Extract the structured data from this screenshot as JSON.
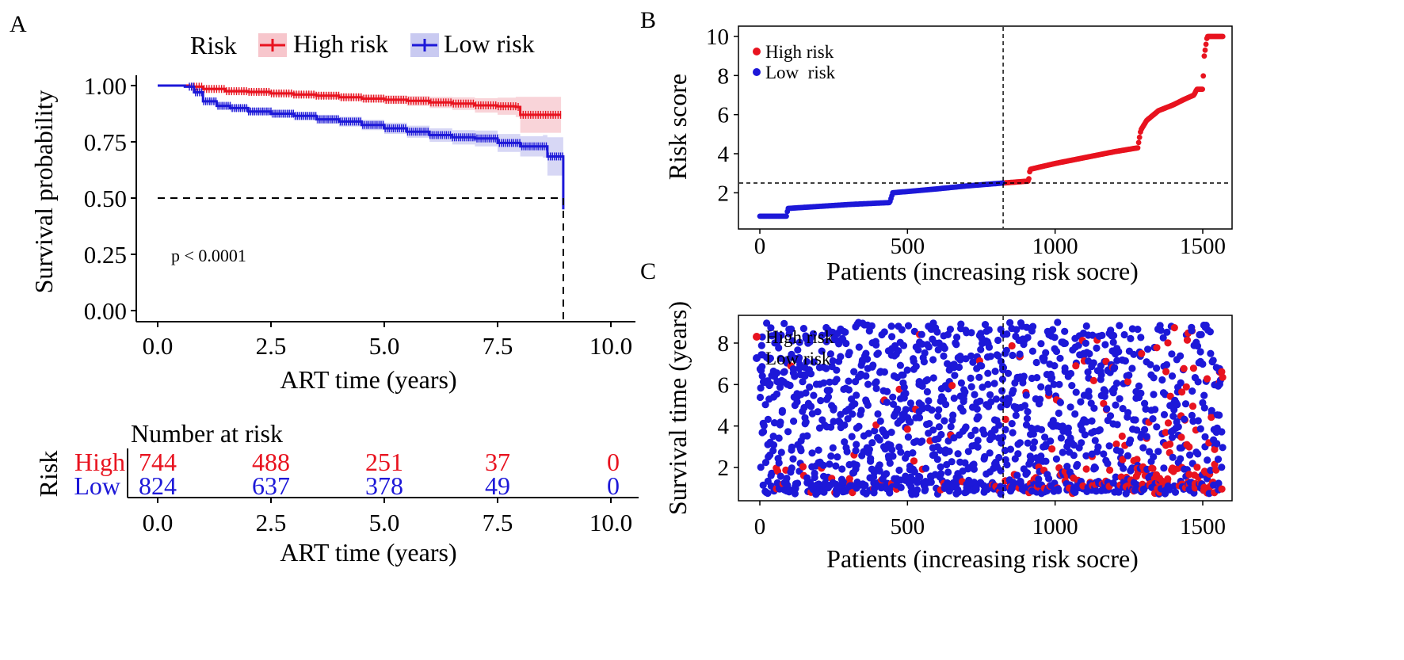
{
  "colors": {
    "high": "#e8131f",
    "low": "#1d18d8",
    "axis": "#000000",
    "high_band": "#f7c6cc",
    "low_band": "#c9caf1"
  },
  "panel_letters": {
    "a": "A",
    "b": "B",
    "c": "C"
  },
  "chart_data": [
    {
      "type": "line",
      "panel": "A",
      "title": "",
      "xlabel": "ART time (years)",
      "ylabel": "Survival probability",
      "xlim": [
        0,
        10.5
      ],
      "ylim": [
        0,
        1
      ],
      "xticks": [
        "0.0",
        "2.5",
        "5.0",
        "7.5",
        "10.0"
      ],
      "yticks": [
        "0.00",
        "0.25",
        "0.50",
        "0.75",
        "1.00"
      ],
      "legend_title": "Risk",
      "legend_position": "top",
      "pvalue_text": "p < 0.0001",
      "median_line": {
        "y": 0.5,
        "x_end": 8.95
      },
      "series": [
        {
          "name": "High risk",
          "x": [
            0,
            0.7,
            1.0,
            1.5,
            2.0,
            2.5,
            3.0,
            3.5,
            4.0,
            4.5,
            5.0,
            5.5,
            6.0,
            6.5,
            7.0,
            7.5,
            7.9,
            8.0,
            8.9
          ],
          "y": [
            1.0,
            0.995,
            0.985,
            0.975,
            0.972,
            0.965,
            0.96,
            0.955,
            0.948,
            0.942,
            0.937,
            0.932,
            0.925,
            0.92,
            0.912,
            0.908,
            0.905,
            0.87,
            0.87
          ],
          "ci_low": [
            1.0,
            0.99,
            0.978,
            0.965,
            0.96,
            0.953,
            0.946,
            0.94,
            0.932,
            0.925,
            0.918,
            0.91,
            0.9,
            0.892,
            0.88,
            0.87,
            0.86,
            0.79,
            0.79
          ],
          "ci_high": [
            1.0,
            1.0,
            0.992,
            0.985,
            0.984,
            0.977,
            0.974,
            0.97,
            0.964,
            0.959,
            0.956,
            0.954,
            0.95,
            0.948,
            0.944,
            0.946,
            0.95,
            0.95,
            0.95
          ]
        },
        {
          "name": "Low risk",
          "x": [
            0,
            0.6,
            0.8,
            1.0,
            1.3,
            1.6,
            2.0,
            2.5,
            3.0,
            3.5,
            4.0,
            4.5,
            5.0,
            5.5,
            6.0,
            6.5,
            7.0,
            7.5,
            8.0,
            8.5,
            8.6,
            8.9,
            8.95
          ],
          "y": [
            1.0,
            0.995,
            0.97,
            0.93,
            0.91,
            0.9,
            0.885,
            0.875,
            0.865,
            0.85,
            0.84,
            0.825,
            0.81,
            0.795,
            0.78,
            0.77,
            0.765,
            0.745,
            0.73,
            0.73,
            0.685,
            0.685,
            0.45
          ],
          "ci_low": [
            1.0,
            0.99,
            0.962,
            0.918,
            0.896,
            0.885,
            0.87,
            0.858,
            0.847,
            0.83,
            0.818,
            0.802,
            0.785,
            0.768,
            0.75,
            0.738,
            0.73,
            0.705,
            0.685,
            0.68,
            0.6,
            0.6,
            0.45
          ],
          "ci_high": [
            1.0,
            1.0,
            0.978,
            0.942,
            0.924,
            0.915,
            0.9,
            0.892,
            0.883,
            0.87,
            0.862,
            0.848,
            0.835,
            0.822,
            0.81,
            0.802,
            0.8,
            0.785,
            0.775,
            0.78,
            0.77,
            0.77,
            0.45
          ]
        }
      ]
    },
    {
      "type": "table",
      "panel": "A-risk-table",
      "title": "Number at risk",
      "row_label_title": "Risk",
      "xlabel": "ART time (years)",
      "xticks": [
        "0.0",
        "2.5",
        "5.0",
        "7.5",
        "10.0"
      ],
      "times": [
        0,
        2.5,
        5,
        7.5,
        10
      ],
      "rows": [
        {
          "name": "High",
          "counts": [
            "744",
            "488",
            "251",
            "37",
            "0"
          ]
        },
        {
          "name": "Low",
          "counts": [
            "824",
            "637",
            "378",
            "49",
            "0"
          ]
        }
      ]
    },
    {
      "type": "scatter",
      "panel": "B",
      "title": "",
      "xlabel": "Patients (increasing risk socre)",
      "ylabel": "Risk score",
      "xlim": [
        -40,
        1610
      ],
      "ylim": [
        0.4,
        10.4
      ],
      "xticks": [
        "0",
        "500",
        "1000",
        "1500"
      ],
      "yticks": [
        "2",
        "4",
        "6",
        "8",
        "10"
      ],
      "cutoff_x": 824,
      "cutoff_y": 2.5,
      "legend_position": "top-left",
      "series": [
        {
          "name": "High risk",
          "legend_label": "High risk",
          "x_range": [
            824,
            1568
          ],
          "knots_x": [
            824,
            910,
            915,
            1000,
            1100,
            1200,
            1280,
            1290,
            1310,
            1350,
            1400,
            1440,
            1470,
            1480,
            1500,
            1505,
            1515,
            1568
          ],
          "knots_y": [
            2.5,
            2.6,
            3.2,
            3.5,
            3.8,
            4.1,
            4.3,
            5.2,
            5.7,
            6.2,
            6.5,
            6.8,
            7.0,
            7.3,
            7.3,
            9.0,
            10.0,
            10.0
          ]
        },
        {
          "name": "Low risk",
          "legend_label": "Low  risk",
          "x_range": [
            0,
            823
          ],
          "knots_x": [
            0,
            90,
            95,
            300,
            440,
            450,
            600,
            700,
            823
          ],
          "knots_y": [
            0.8,
            0.8,
            1.2,
            1.4,
            1.5,
            2.0,
            2.2,
            2.35,
            2.5
          ]
        }
      ]
    },
    {
      "type": "scatter",
      "panel": "C",
      "title": "",
      "xlabel": "Patients (increasing risk socre)",
      "ylabel": "Survival time (years)",
      "xlim": [
        -40,
        1610
      ],
      "ylim": [
        0.2,
        9.2
      ],
      "xticks": [
        "0",
        "500",
        "1000",
        "1500"
      ],
      "yticks": [
        "2",
        "4",
        "6",
        "8"
      ],
      "cutoff_x": 824,
      "legend_position": "top-left",
      "point_count": 1568,
      "time_range": [
        0.7,
        9.0
      ],
      "series": [
        {
          "name": "High risk",
          "legend_label": "High risk"
        },
        {
          "name": "Low risk",
          "legend_label": "Low risk"
        }
      ]
    }
  ]
}
